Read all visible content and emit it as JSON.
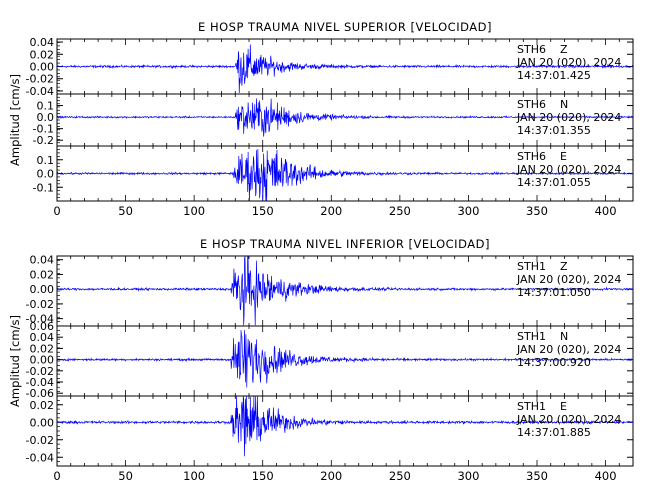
{
  "trace_color": "#0000ff",
  "chart_data": [
    {
      "type": "line",
      "title": "E HOSP TRAUMA NIVEL SUPERIOR [VELOCIDAD]",
      "ylabel": "Amplitud [cm/s]",
      "xlabel": "",
      "xlim": [
        0,
        420
      ],
      "xticks": [
        "0",
        "50",
        "100",
        "150",
        "200",
        "250",
        "300",
        "350",
        "400"
      ],
      "grid": false,
      "panels": [
        {
          "station": "STH6",
          "component": "Z",
          "date": "JAN 20 (020), 2024",
          "time": "14:37:01.425",
          "ylim": [
            -0.045,
            0.045
          ],
          "yticks": [
            "0.04",
            "0.02",
            "0.00",
            "-0.02",
            "-0.04"
          ],
          "noise": 0.0015,
          "onset": 130,
          "peak": 0.035,
          "decay": 18,
          "bursts": [
            [
              135,
              1.0,
              6
            ]
          ]
        },
        {
          "station": "STH6",
          "component": "N",
          "date": "JAN 20 (020), 2024",
          "time": "14:37:01.355",
          "ylim": [
            -0.25,
            0.2
          ],
          "yticks": [
            "0.1",
            "0.0",
            "-0.1",
            "-0.2"
          ],
          "noise": 0.006,
          "onset": 130,
          "peak": 0.13,
          "decay": 20,
          "bursts": [
            [
              137,
              1.0,
              5
            ],
            [
              150,
              0.7,
              6
            ]
          ]
        },
        {
          "station": "STH6",
          "component": "E",
          "date": "JAN 20 (020), 2024",
          "time": "14:37:01.055",
          "ylim": [
            -0.2,
            0.2
          ],
          "yticks": [
            "0.1",
            "0.0",
            "-0.1"
          ],
          "noise": 0.006,
          "onset": 128,
          "peak": 0.16,
          "decay": 20,
          "bursts": [
            [
              136,
              0.9,
              5
            ],
            [
              150,
              1.0,
              5
            ]
          ]
        }
      ]
    },
    {
      "type": "line",
      "title": "E HOSP TRAUMA NIVEL INFERIOR [VELOCIDAD]",
      "ylabel": "Amplitud [cm/s]",
      "xlabel": "",
      "xlim": [
        0,
        420
      ],
      "xticks": [
        "0",
        "50",
        "100",
        "150",
        "200",
        "250",
        "300",
        "350",
        "400"
      ],
      "grid": false,
      "panels": [
        {
          "station": "STH1",
          "component": "Z",
          "date": "JAN 20 (020), 2024",
          "time": "14:37:01.050",
          "ylim": [
            -0.05,
            0.045
          ],
          "yticks": [
            "0.04",
            "0.02",
            "0.00",
            "-0.02",
            "-0.04"
          ],
          "noise": 0.0012,
          "onset": 127,
          "peak": 0.042,
          "decay": 22,
          "bursts": [
            [
              137,
              1.0,
              8
            ]
          ]
        },
        {
          "station": "STH1",
          "component": "N",
          "date": "JAN 20 (020), 2024",
          "time": "14:37:00.920",
          "ylim": [
            -0.065,
            0.06
          ],
          "yticks": [
            "0.06",
            "0.04",
            "0.02",
            "0.00",
            "-0.02",
            "-0.04",
            "-0.06"
          ],
          "noise": 0.0015,
          "onset": 127,
          "peak": 0.055,
          "decay": 22,
          "bursts": [
            [
              137,
              1.0,
              8
            ]
          ]
        },
        {
          "station": "STH1",
          "component": "E",
          "date": "JAN 20 (020), 2024",
          "time": "14:37:01.885",
          "ylim": [
            -0.05,
            0.03
          ],
          "yticks": [
            "0.02",
            "0.00",
            "-0.02",
            "-0.04"
          ],
          "noise": 0.0012,
          "onset": 127,
          "peak": 0.04,
          "decay": 18,
          "bursts": [
            [
              137,
              1.0,
              6
            ]
          ]
        }
      ]
    }
  ]
}
